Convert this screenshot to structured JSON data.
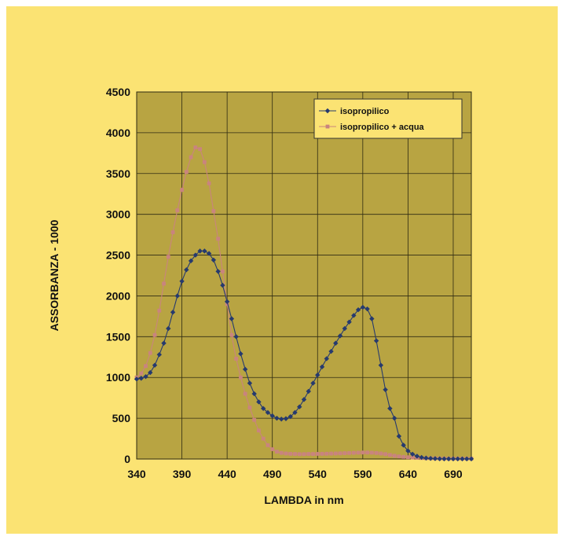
{
  "colors": {
    "background": "#fbe373",
    "plot_area": "#b8a442",
    "grid": "#2e2a12",
    "series1": "#263a6e",
    "series2": "#c9847e"
  },
  "chart_data": {
    "type": "line",
    "title": "",
    "xlabel": "LAMBDA in nm",
    "ylabel": "ASSORBANZA - 1000",
    "xlim": [
      340,
      710
    ],
    "ylim": [
      0,
      4500
    ],
    "xticks": [
      340,
      390,
      440,
      490,
      540,
      590,
      640,
      690
    ],
    "yticks": [
      0,
      500,
      1000,
      1500,
      2000,
      2500,
      3000,
      3500,
      4000,
      4500
    ],
    "grid": true,
    "legend_position": "top-right",
    "series": [
      {
        "name": "isopropilico",
        "marker": "diamond",
        "x": [
          340,
          345,
          350,
          355,
          360,
          365,
          370,
          375,
          380,
          385,
          390,
          395,
          400,
          405,
          410,
          415,
          420,
          425,
          430,
          435,
          440,
          445,
          450,
          455,
          460,
          465,
          470,
          475,
          480,
          485,
          490,
          495,
          500,
          505,
          510,
          515,
          520,
          525,
          530,
          535,
          540,
          545,
          550,
          555,
          560,
          565,
          570,
          575,
          580,
          585,
          590,
          595,
          600,
          605,
          610,
          615,
          620,
          625,
          630,
          635,
          640,
          645,
          650,
          655,
          660,
          665,
          670,
          675,
          680,
          685,
          690,
          695,
          700,
          705,
          710
        ],
        "y": [
          980,
          990,
          1010,
          1060,
          1150,
          1280,
          1420,
          1600,
          1800,
          2000,
          2180,
          2320,
          2430,
          2500,
          2550,
          2550,
          2520,
          2440,
          2300,
          2130,
          1930,
          1720,
          1500,
          1290,
          1100,
          930,
          800,
          700,
          620,
          570,
          530,
          500,
          490,
          495,
          520,
          570,
          640,
          730,
          830,
          930,
          1030,
          1130,
          1230,
          1320,
          1420,
          1510,
          1600,
          1680,
          1760,
          1830,
          1860,
          1840,
          1720,
          1450,
          1150,
          850,
          620,
          500,
          280,
          170,
          100,
          60,
          35,
          20,
          12,
          8,
          5,
          3,
          2,
          2,
          2,
          2,
          2,
          2,
          2
        ]
      },
      {
        "name": "isopropilico + acqua",
        "marker": "square",
        "x": [
          340,
          345,
          350,
          355,
          360,
          365,
          370,
          375,
          380,
          385,
          390,
          395,
          400,
          405,
          410,
          415,
          420,
          425,
          430,
          435,
          440,
          445,
          450,
          455,
          460,
          465,
          470,
          475,
          480,
          485,
          490,
          495,
          500,
          505,
          510,
          515,
          520,
          525,
          530,
          535,
          540,
          545,
          550,
          555,
          560,
          565,
          570,
          575,
          580,
          585,
          590,
          595,
          600,
          605,
          610,
          615,
          620,
          625,
          630,
          635,
          640,
          645,
          650,
          655,
          660,
          665,
          670,
          675,
          680,
          685,
          690,
          695,
          700,
          705,
          710
        ],
        "y": [
          1000,
          1050,
          1140,
          1300,
          1520,
          1820,
          2150,
          2480,
          2780,
          3050,
          3300,
          3520,
          3700,
          3820,
          3800,
          3640,
          3380,
          3040,
          2700,
          2300,
          1900,
          1520,
          1230,
          1000,
          800,
          630,
          480,
          350,
          250,
          170,
          120,
          90,
          75,
          68,
          64,
          62,
          60,
          60,
          62,
          62,
          63,
          64,
          65,
          67,
          68,
          70,
          72,
          74,
          76,
          78,
          80,
          80,
          78,
          74,
          68,
          60,
          50,
          40,
          32,
          26,
          22,
          18,
          15,
          12,
          10,
          9,
          8,
          7,
          6,
          5,
          5,
          5,
          5,
          5,
          5
        ]
      }
    ]
  }
}
